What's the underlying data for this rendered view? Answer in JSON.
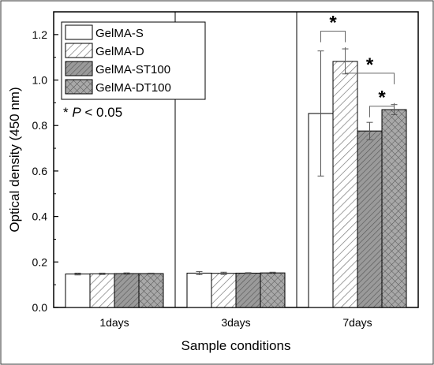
{
  "chart_data": {
    "type": "bar",
    "title": "",
    "xlabel": "Sample conditions",
    "ylabel": "Optical density (450 nm)",
    "ylim": [
      0.0,
      1.3
    ],
    "yticks": [
      0.0,
      0.2,
      0.4,
      0.6,
      0.8,
      1.0,
      1.2
    ],
    "yticks_labels": [
      "0.0",
      "0.2",
      "0.4",
      "0.6",
      "0.8",
      "1.0",
      "1.2"
    ],
    "categories": [
      "1days",
      "3days",
      "7days"
    ],
    "series": [
      {
        "name": "GelMA-S",
        "pattern": "none",
        "values": [
          0.147,
          0.151,
          0.853
        ],
        "errors": [
          0.004,
          0.007,
          0.275
        ]
      },
      {
        "name": "GelMA-D",
        "pattern": "diagonal-light",
        "values": [
          0.148,
          0.15,
          1.082
        ],
        "errors": [
          0.003,
          0.005,
          0.055
        ]
      },
      {
        "name": "GelMA-ST100",
        "pattern": "diagonal-gray",
        "values": [
          0.149,
          0.151,
          0.776
        ],
        "errors": [
          0.003,
          0.002,
          0.038
        ]
      },
      {
        "name": "GelMA-DT100",
        "pattern": "crosshatch-gray",
        "values": [
          0.149,
          0.152,
          0.87
        ],
        "errors": [
          0.002,
          0.003,
          0.022
        ]
      }
    ],
    "legend_position": "top-left",
    "annotation_text": "* P < 0.05",
    "annotation_parts": {
      "star": "* ",
      "p": "P",
      "rest": " < 0.05"
    },
    "significance": [
      {
        "label": "*",
        "category": 2,
        "from": 0,
        "to": 1,
        "level": 1.215
      },
      {
        "label": "*",
        "category": 2,
        "from": 1,
        "to": 3,
        "level": 1.03
      },
      {
        "label": "*",
        "category": 2,
        "from": 2,
        "to": 3,
        "level": 0.885
      }
    ],
    "grid": false
  }
}
